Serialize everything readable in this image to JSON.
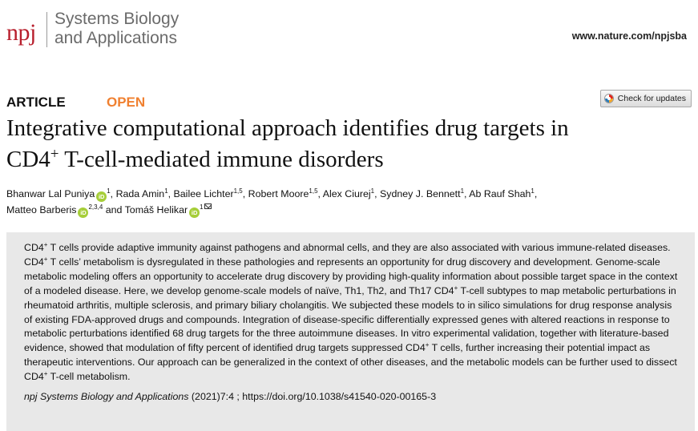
{
  "header": {
    "logo": "npj",
    "journal_line1": "Systems Biology",
    "journal_line2": "and Applications",
    "url": "www.nature.com/npjsba"
  },
  "article_type": "ARTICLE",
  "access": "OPEN",
  "check_updates": "Check for updates",
  "title": {
    "line1": "Integrative computational approach identifies drug targets in",
    "cd4": "CD4",
    "sup": "+",
    "line2_rest": " T-cell-mediated immune disorders"
  },
  "authors": [
    {
      "name": "Bhanwar Lal Puniya",
      "aff": "1",
      "orcid": true,
      "sep": ", "
    },
    {
      "name": "Rada Amin",
      "aff": "1",
      "sep": ", "
    },
    {
      "name": "Bailee Lichter",
      "aff": "1,5",
      "sep": ", "
    },
    {
      "name": "Robert Moore",
      "aff": "1,5",
      "sep": ", "
    },
    {
      "name": "Alex Ciurej",
      "aff": "1",
      "sep": ", "
    },
    {
      "name": "Sydney J. Bennett",
      "aff": "1",
      "sep": ", "
    },
    {
      "name": "Ab Rauf Shah",
      "aff": "1",
      "sep": ","
    },
    {
      "name": "Matteo Barberis",
      "aff": "2,3,4",
      "orcid": true,
      "sep": " and "
    },
    {
      "name": "Tomáš Helikar",
      "aff": "1",
      "orcid": true,
      "mail": true,
      "sep": ""
    }
  ],
  "orcid_label": "iD",
  "abstract": {
    "cd4": "CD4",
    "sup": "+",
    "s1": " T cells provide adaptive immunity against pathogens and abnormal cells, and they are also associated with various immune-related diseases. ",
    "s2": " T cells’ metabolism is dysregulated in these pathologies and represents an opportunity for drug discovery and development. Genome-scale metabolic modeling offers an opportunity to accelerate drug discovery by providing high-quality information about possible target space in the context of a modeled disease. Here, we develop genome-scale models of naïve, Th1, Th2, and Th17 ",
    "s3": " T-cell subtypes to map metabolic perturbations in rheumatoid arthritis, multiple sclerosis, and primary biliary cholangitis. We subjected these models to in silico simulations for drug response analysis of existing FDA-approved drugs and compounds. Integration of disease-specific differentially expressed genes with altered reactions in response to metabolic perturbations identified 68 drug targets for the three autoimmune diseases. In vitro experimental validation, together with literature-based evidence, showed that modulation of fifty percent of identified drug targets suppressed ",
    "s4": " T cells, further increasing their potential impact as therapeutic interventions. Our approach can be generalized in the context of other diseases, and the metabolic models can be further used to dissect ",
    "s5": " T-cell metabolism."
  },
  "citation": {
    "journal": "npj Systems Biology and Applications",
    "details": " (2021)7:4 ; https://doi.org/10.1038/s41540-020-00165-3"
  },
  "colors": {
    "npj_red": "#b8202e",
    "open_orange": "#f08030",
    "orcid_green": "#a6ce39",
    "abstract_bg": "#e8e8e8"
  }
}
